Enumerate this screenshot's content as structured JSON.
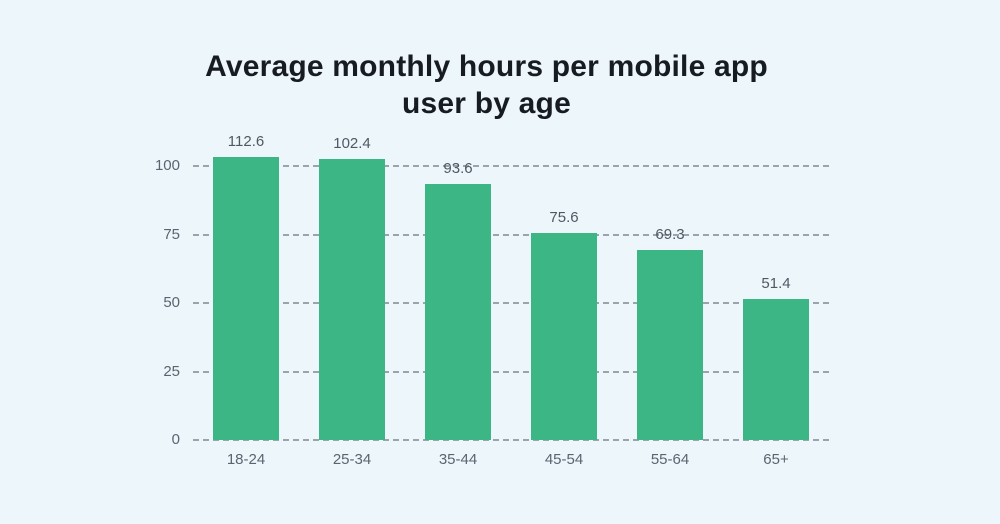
{
  "title": {
    "text": "Average monthly hours per mobile app user by age",
    "lines": [
      "Average monthly hours per mobile app",
      "user by age"
    ]
  },
  "chart_data": {
    "type": "bar",
    "title": "Average monthly hours per mobile app user by age",
    "categories": [
      "18-24",
      "25-34",
      "35-44",
      "45-54",
      "55-64",
      "65+"
    ],
    "values": [
      112.6,
      102.4,
      93.6,
      75.6,
      69.3,
      51.4
    ],
    "xlabel": "",
    "ylabel": "",
    "yticks": [
      0,
      25,
      50,
      75,
      100
    ],
    "ylim": [
      0,
      103.3
    ],
    "grid": "horizontal-dashed",
    "legend": "none",
    "value_labels": true,
    "bar_color": "#3db686"
  },
  "colors": {
    "bg": "#edf6fa",
    "bar": "#3db686",
    "grid": "#9aa4ad",
    "title": "#171c23",
    "vlabel": "#4f5962",
    "tick": "#5b6571"
  }
}
